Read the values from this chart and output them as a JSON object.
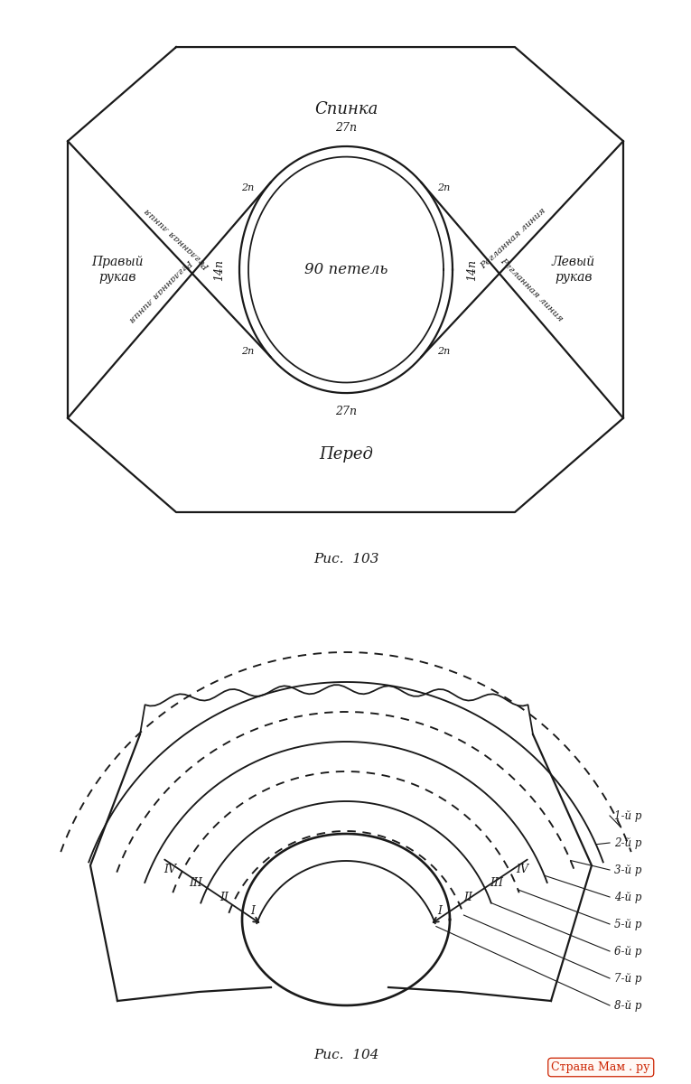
{
  "bg_color": "#ffffff",
  "fig1_caption": "Рис.  103",
  "fig2_caption": "Рис.  104",
  "center_text": "90 петель",
  "spinka_text": "Спинка",
  "pered_text": "Перед",
  "right_sleeve_text": "Правый\nрукав",
  "left_sleeve_text": "Левый\nрукав",
  "top_arc_text": "27п",
  "bottom_arc_text": "27п",
  "left_arc_text": "14п",
  "right_arc_text": "14п",
  "corner_text": "2п",
  "raglan_text": "Регланная линия",
  "row_labels": [
    "1-й р",
    "2-й р",
    "3-й р",
    "4-й р",
    "5-й р",
    "6-й р",
    "7-й р",
    "8-й р"
  ],
  "roman_labels": [
    "I",
    "II",
    "III",
    "IV"
  ]
}
